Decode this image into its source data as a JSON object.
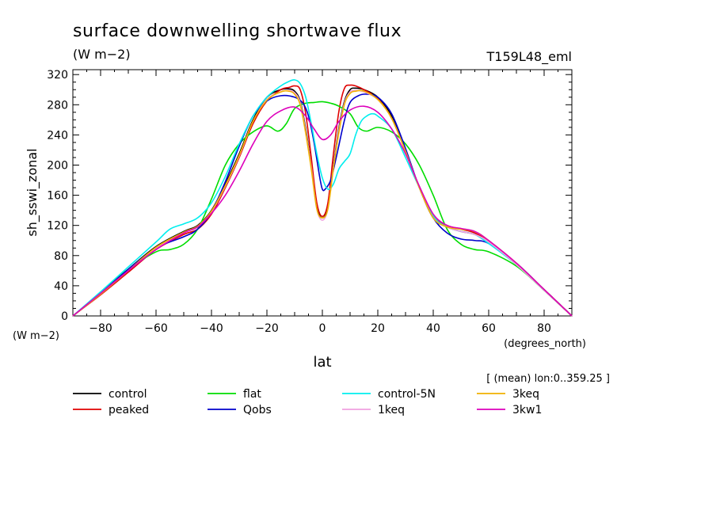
{
  "chart_data": {
    "type": "line",
    "title": "surface downwelling shortwave flux",
    "units": "(W m−2)",
    "run_label": "T159L48_eml",
    "ylabel": "sh_sswi_zonal",
    "ylabel_units": "(W m−2)",
    "xlabel": "lat",
    "xlabel_units": "(degrees_north)",
    "subtitle_note": "[ (mean) lon:0..359.25 ]",
    "xlim": [
      -90,
      90
    ],
    "ylim": [
      0,
      330
    ],
    "x_ticks": [
      -80,
      -60,
      -40,
      -20,
      0,
      20,
      40,
      60,
      80
    ],
    "x_tick_labels": [
      "−80",
      "−60",
      "−40",
      "−20",
      "0",
      "20",
      "40",
      "60",
      "80"
    ],
    "y_ticks": [
      0,
      40,
      80,
      120,
      160,
      200,
      240,
      280,
      320
    ],
    "y_tick_labels": [
      "0",
      "40",
      "80",
      "120",
      "160",
      "200",
      "240",
      "280",
      "320"
    ],
    "grid": false,
    "legend_position": "bottom",
    "series": [
      {
        "name": "control",
        "color": "#000000",
        "x": [
          -90,
          -80,
          -70,
          -60,
          -50,
          -45,
          -40,
          -35,
          -30,
          -25,
          -20,
          -15,
          -12,
          -10,
          -8,
          -6,
          -4,
          -2,
          0,
          2,
          4,
          6,
          8,
          10,
          12,
          15,
          20,
          25,
          30,
          35,
          40,
          45,
          50,
          55,
          60,
          70,
          80,
          90
        ],
        "y": [
          0,
          30,
          62,
          92,
          112,
          120,
          140,
          175,
          215,
          260,
          290,
          300,
          301,
          298,
          285,
          248,
          200,
          145,
          130,
          145,
          200,
          250,
          285,
          300,
          302,
          300,
          290,
          265,
          220,
          170,
          130,
          118,
          112,
          108,
          98,
          68,
          35,
          0
        ]
      },
      {
        "name": "peaked",
        "color": "#e00000",
        "x": [
          -90,
          -80,
          -70,
          -60,
          -50,
          -45,
          -40,
          -35,
          -30,
          -25,
          -20,
          -15,
          -12,
          -10,
          -8,
          -6,
          -4,
          -2,
          0,
          2,
          4,
          6,
          8,
          10,
          12,
          15,
          20,
          25,
          30,
          35,
          40,
          45,
          50,
          55,
          60,
          70,
          80,
          90
        ],
        "y": [
          0,
          28,
          58,
          88,
          108,
          115,
          135,
          170,
          210,
          255,
          285,
          300,
          303,
          305,
          300,
          268,
          210,
          150,
          132,
          150,
          215,
          272,
          302,
          306,
          305,
          300,
          288,
          262,
          218,
          170,
          132,
          120,
          115,
          110,
          98,
          68,
          34,
          0
        ]
      },
      {
        "name": "flat",
        "color": "#00dd00",
        "x": [
          -90,
          -80,
          -70,
          -60,
          -55,
          -50,
          -45,
          -40,
          -35,
          -30,
          -25,
          -20,
          -16,
          -13,
          -10,
          -6,
          -3,
          0,
          3,
          6,
          10,
          13,
          16,
          20,
          25,
          30,
          35,
          40,
          45,
          50,
          55,
          60,
          70,
          80,
          90
        ],
        "y": [
          0,
          30,
          62,
          85,
          88,
          95,
          115,
          155,
          200,
          228,
          244,
          252,
          245,
          255,
          275,
          282,
          283,
          284,
          282,
          278,
          268,
          250,
          245,
          250,
          244,
          228,
          200,
          160,
          115,
          95,
          88,
          85,
          66,
          34,
          0
        ]
      },
      {
        "name": "Qobs",
        "color": "#0000cc",
        "x": [
          -90,
          -80,
          -70,
          -60,
          -50,
          -45,
          -40,
          -35,
          -30,
          -25,
          -20,
          -15,
          -10,
          -7,
          -5,
          -3,
          -1,
          0,
          1,
          3,
          5,
          8,
          10,
          13,
          16,
          20,
          25,
          30,
          35,
          40,
          45,
          50,
          55,
          60,
          70,
          80,
          90
        ],
        "y": [
          0,
          30,
          62,
          90,
          105,
          115,
          138,
          178,
          225,
          265,
          285,
          292,
          290,
          282,
          265,
          230,
          185,
          168,
          168,
          180,
          210,
          260,
          283,
          292,
          294,
          290,
          268,
          222,
          170,
          130,
          110,
          102,
          100,
          96,
          70,
          35,
          0
        ]
      },
      {
        "name": "control-5N",
        "color": "#00eeee",
        "x": [
          -90,
          -80,
          -70,
          -60,
          -55,
          -50,
          -45,
          -40,
          -35,
          -30,
          -25,
          -20,
          -15,
          -12,
          -10,
          -8,
          -6,
          -4,
          -2,
          0,
          2,
          4,
          6,
          8,
          10,
          12,
          14,
          16,
          18,
          20,
          25,
          30,
          35,
          40,
          45,
          50,
          55,
          60,
          70,
          80,
          90
        ],
        "y": [
          0,
          32,
          65,
          98,
          115,
          122,
          130,
          150,
          185,
          228,
          265,
          290,
          305,
          311,
          313,
          308,
          290,
          255,
          215,
          183,
          168,
          175,
          195,
          205,
          215,
          240,
          258,
          265,
          268,
          265,
          248,
          210,
          170,
          132,
          118,
          112,
          108,
          96,
          68,
          34,
          0
        ]
      },
      {
        "name": "1keq",
        "color": "#f0a0e0",
        "x": [
          -90,
          -80,
          -70,
          -60,
          -50,
          -45,
          -40,
          -35,
          -30,
          -25,
          -20,
          -15,
          -12,
          -10,
          -8,
          -6,
          -4,
          -2,
          0,
          2,
          4,
          6,
          8,
          10,
          12,
          15,
          20,
          25,
          30,
          35,
          40,
          45,
          50,
          55,
          60,
          70,
          80,
          90
        ],
        "y": [
          0,
          29,
          60,
          90,
          110,
          118,
          138,
          172,
          212,
          258,
          287,
          297,
          299,
          296,
          283,
          245,
          198,
          142,
          127,
          142,
          198,
          247,
          283,
          297,
          299,
          297,
          287,
          262,
          218,
          170,
          130,
          118,
          112,
          108,
          98,
          68,
          34,
          0
        ]
      },
      {
        "name": "3keq",
        "color": "#f0b000",
        "x": [
          -90,
          -80,
          -70,
          -60,
          -50,
          -45,
          -40,
          -35,
          -30,
          -25,
          -20,
          -15,
          -12,
          -10,
          -8,
          -6,
          -4,
          -2,
          0,
          2,
          4,
          6,
          8,
          10,
          12,
          15,
          20,
          25,
          30,
          35,
          40,
          45,
          50,
          55,
          60,
          70,
          80,
          90
        ],
        "y": [
          0,
          29,
          60,
          91,
          111,
          119,
          139,
          173,
          213,
          258,
          286,
          297,
          298,
          294,
          280,
          242,
          195,
          142,
          130,
          142,
          196,
          244,
          281,
          295,
          298,
          298,
          287,
          262,
          218,
          170,
          130,
          118,
          115,
          112,
          100,
          70,
          35,
          0
        ]
      },
      {
        "name": "3kw1",
        "color": "#dd00bb",
        "x": [
          -90,
          -80,
          -70,
          -60,
          -50,
          -45,
          -40,
          -35,
          -30,
          -25,
          -20,
          -15,
          -10,
          -6,
          -3,
          0,
          3,
          6,
          10,
          15,
          20,
          25,
          30,
          35,
          40,
          45,
          50,
          55,
          60,
          70,
          80,
          90
        ],
        "y": [
          0,
          30,
          60,
          88,
          110,
          118,
          136,
          160,
          192,
          228,
          258,
          272,
          277,
          265,
          248,
          234,
          240,
          258,
          273,
          278,
          270,
          248,
          215,
          172,
          135,
          120,
          116,
          112,
          100,
          70,
          35,
          0
        ]
      }
    ]
  }
}
